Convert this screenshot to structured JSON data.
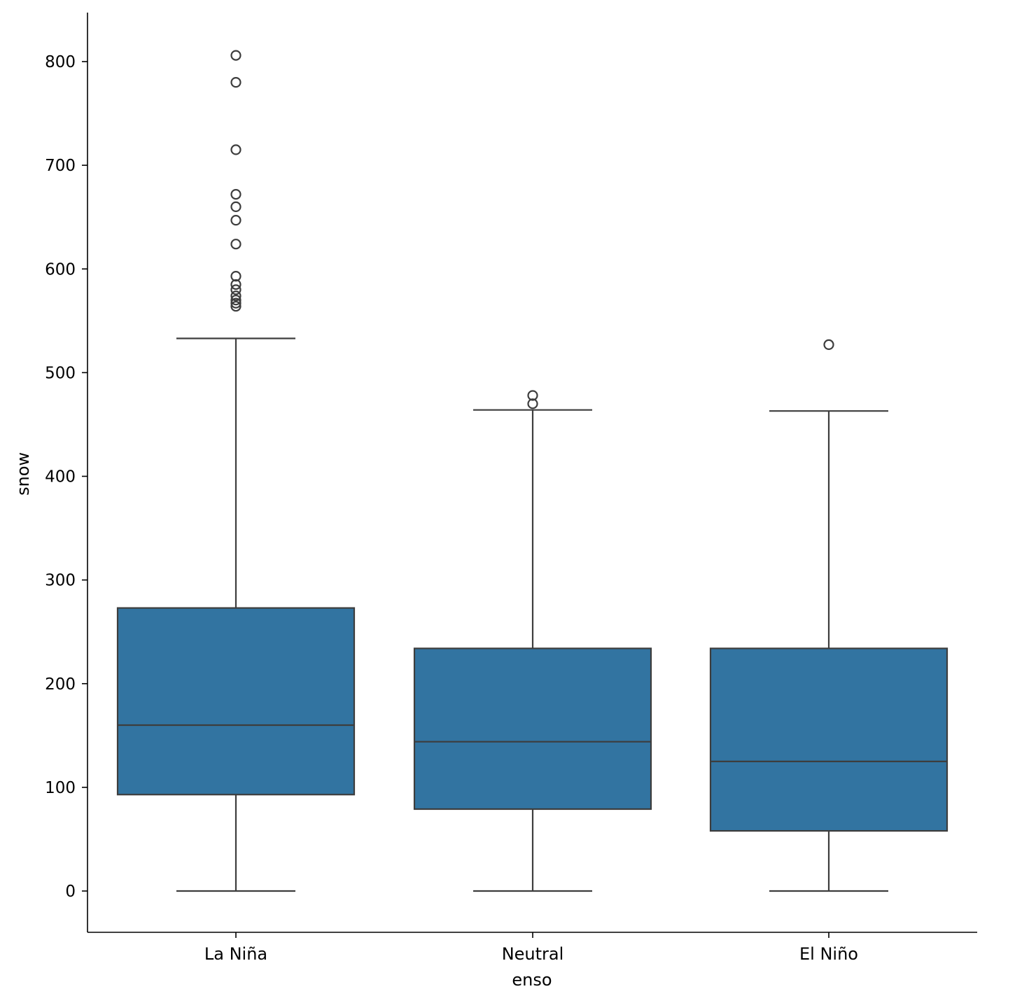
{
  "chart_data": {
    "type": "box",
    "xlabel": "enso",
    "ylabel": "snow",
    "ylim": [
      -40,
      845
    ],
    "yticks": [
      0,
      100,
      200,
      300,
      400,
      500,
      600,
      700,
      800
    ],
    "categories": [
      "La Niña",
      "Neutral",
      "El Niño"
    ],
    "boxes": [
      {
        "category": "La Niña",
        "whisker_low": 0,
        "q1": 93,
        "median": 160,
        "q3": 273,
        "whisker_high": 533,
        "outliers": [
          564,
          567,
          570,
          574,
          580,
          585,
          593,
          624,
          647,
          660,
          672,
          715,
          780,
          806
        ]
      },
      {
        "category": "Neutral",
        "whisker_low": 0,
        "q1": 79,
        "median": 144,
        "q3": 234,
        "whisker_high": 464,
        "outliers": [
          470,
          478
        ]
      },
      {
        "category": "El Niño",
        "whisker_low": 0,
        "q1": 58,
        "median": 125,
        "q3": 234,
        "whisker_high": 463,
        "outliers": [
          527
        ]
      }
    ],
    "box_color": "#3274a1",
    "line_color": "#3d3d3d",
    "grid": false,
    "legend": "none"
  }
}
